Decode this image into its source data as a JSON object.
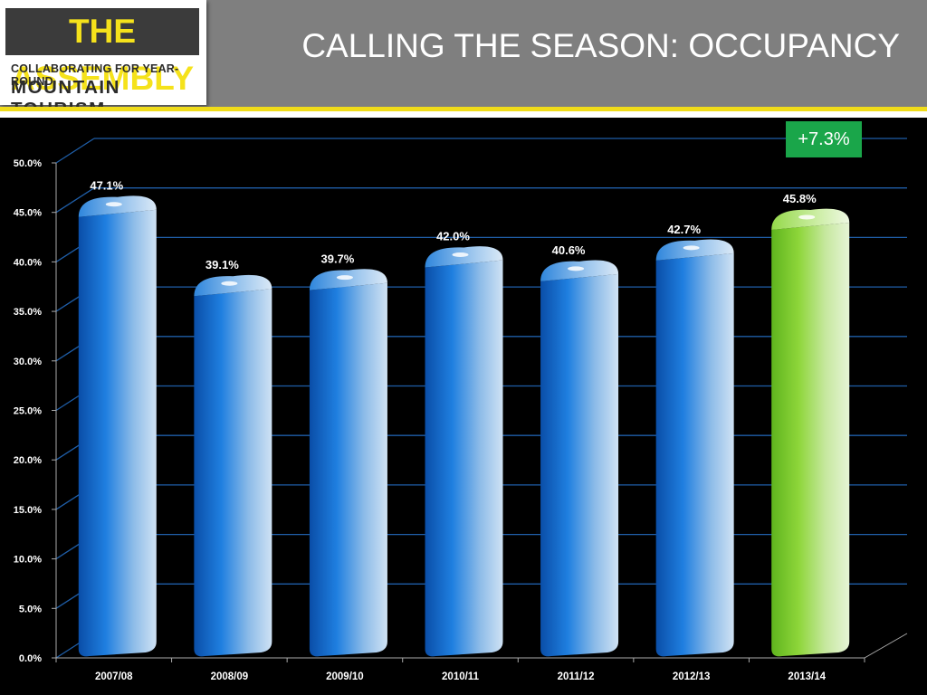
{
  "header": {
    "logo_title": "THE ASSEMBLY",
    "logo_line1": "COLLABORATING FOR YEAR-ROUND",
    "logo_line2": "MOUNTAIN TOURISM",
    "title": "CALLING THE SEASON:  OCCUPANCY"
  },
  "callout": {
    "text": "+7.3%",
    "color": "#1aa64a"
  },
  "colors": {
    "background": "#000000",
    "header": "#7f7f7f",
    "accent_yellow": "#f0dc1a",
    "bar_blue": "#1e78d6",
    "bar_highlight": "#8ed63a",
    "gridline": "#1f5ea8"
  },
  "chart_data": {
    "type": "bar",
    "categories": [
      "2007/08",
      "2008/09",
      "2009/10",
      "2010/11",
      "2011/12",
      "2012/13",
      "2013/14"
    ],
    "values": [
      47.1,
      39.1,
      39.7,
      42.0,
      40.6,
      42.7,
      45.8
    ],
    "value_labels": [
      "47.1%",
      "39.1%",
      "39.7%",
      "42.0%",
      "40.6%",
      "42.7%",
      "45.8%"
    ],
    "highlight_index": 6,
    "ylim": [
      0,
      50
    ],
    "yticks": [
      "0.0%",
      "5.0%",
      "10.0%",
      "15.0%",
      "20.0%",
      "25.0%",
      "30.0%",
      "35.0%",
      "40.0%",
      "45.0%",
      "50.0%"
    ],
    "grid": true,
    "title": "",
    "xlabel": "",
    "ylabel": ""
  }
}
